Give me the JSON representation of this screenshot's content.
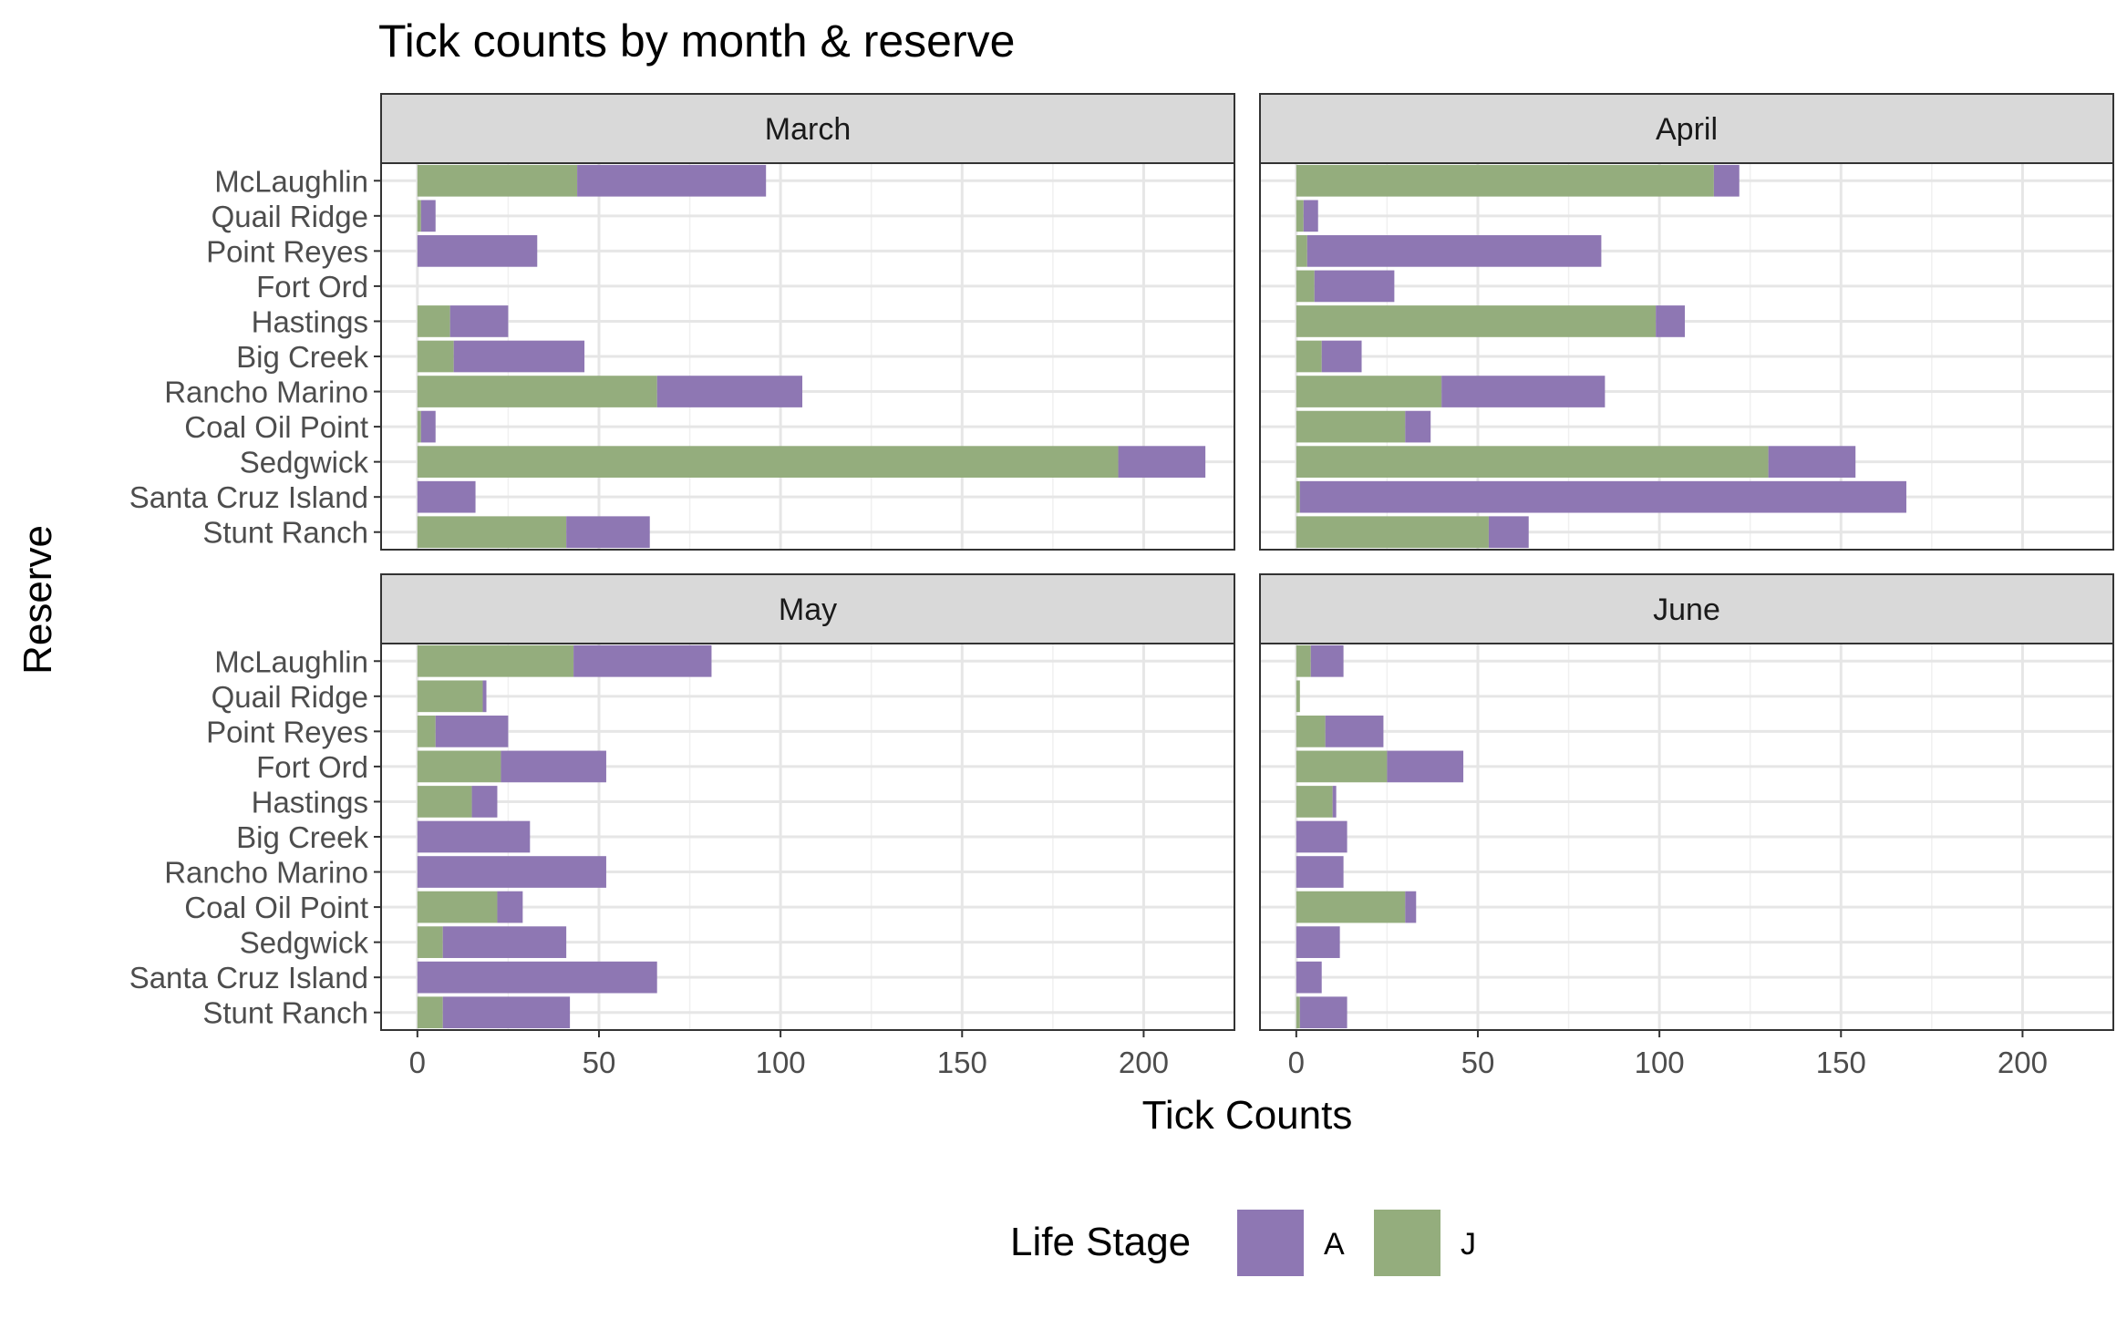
{
  "chart_data": {
    "type": "bar",
    "orientation": "horizontal",
    "stacked": true,
    "title": "Tick counts by month & reserve",
    "xlabel": "Tick Counts",
    "ylabel": "Reserve",
    "xlim": [
      -10,
      225
    ],
    "xticks": [
      0,
      50,
      100,
      150,
      200
    ],
    "grid": true,
    "legend": {
      "title": "Life Stage",
      "position": "bottom",
      "entries": [
        {
          "label": "A",
          "color": "#8e77b3"
        },
        {
          "label": "J",
          "color": "#94ad7d"
        }
      ]
    },
    "categories": [
      "McLaughlin",
      "Quail Ridge",
      "Point Reyes",
      "Fort Ord",
      "Hastings",
      "Big Creek",
      "Rancho Marino",
      "Coal Oil Point",
      "Sedgwick",
      "Santa Cruz Island",
      "Stunt Ranch"
    ],
    "panels": [
      {
        "label": "March",
        "series": [
          {
            "name": "J",
            "values": [
              44,
              1,
              0,
              0,
              9,
              10,
              66,
              1,
              193,
              0,
              41
            ]
          },
          {
            "name": "A",
            "values": [
              52,
              4,
              33,
              0,
              16,
              36,
              40,
              4,
              24,
              16,
              23
            ]
          }
        ]
      },
      {
        "label": "April",
        "series": [
          {
            "name": "J",
            "values": [
              115,
              2,
              3,
              5,
              99,
              7,
              40,
              30,
              130,
              1,
              53
            ]
          },
          {
            "name": "A",
            "values": [
              7,
              4,
              81,
              22,
              8,
              11,
              45,
              7,
              24,
              167,
              11
            ]
          }
        ]
      },
      {
        "label": "May",
        "series": [
          {
            "name": "J",
            "values": [
              43,
              18,
              5,
              23,
              15,
              0,
              0,
              22,
              7,
              0,
              7
            ]
          },
          {
            "name": "A",
            "values": [
              38,
              1,
              20,
              29,
              7,
              31,
              52,
              7,
              34,
              66,
              35
            ]
          }
        ]
      },
      {
        "label": "June",
        "series": [
          {
            "name": "J",
            "values": [
              4,
              1,
              8,
              25,
              10,
              0,
              0,
              30,
              0,
              0,
              1
            ]
          },
          {
            "name": "A",
            "values": [
              9,
              0,
              16,
              21,
              1,
              14,
              13,
              3,
              12,
              7,
              13
            ]
          }
        ]
      }
    ]
  }
}
